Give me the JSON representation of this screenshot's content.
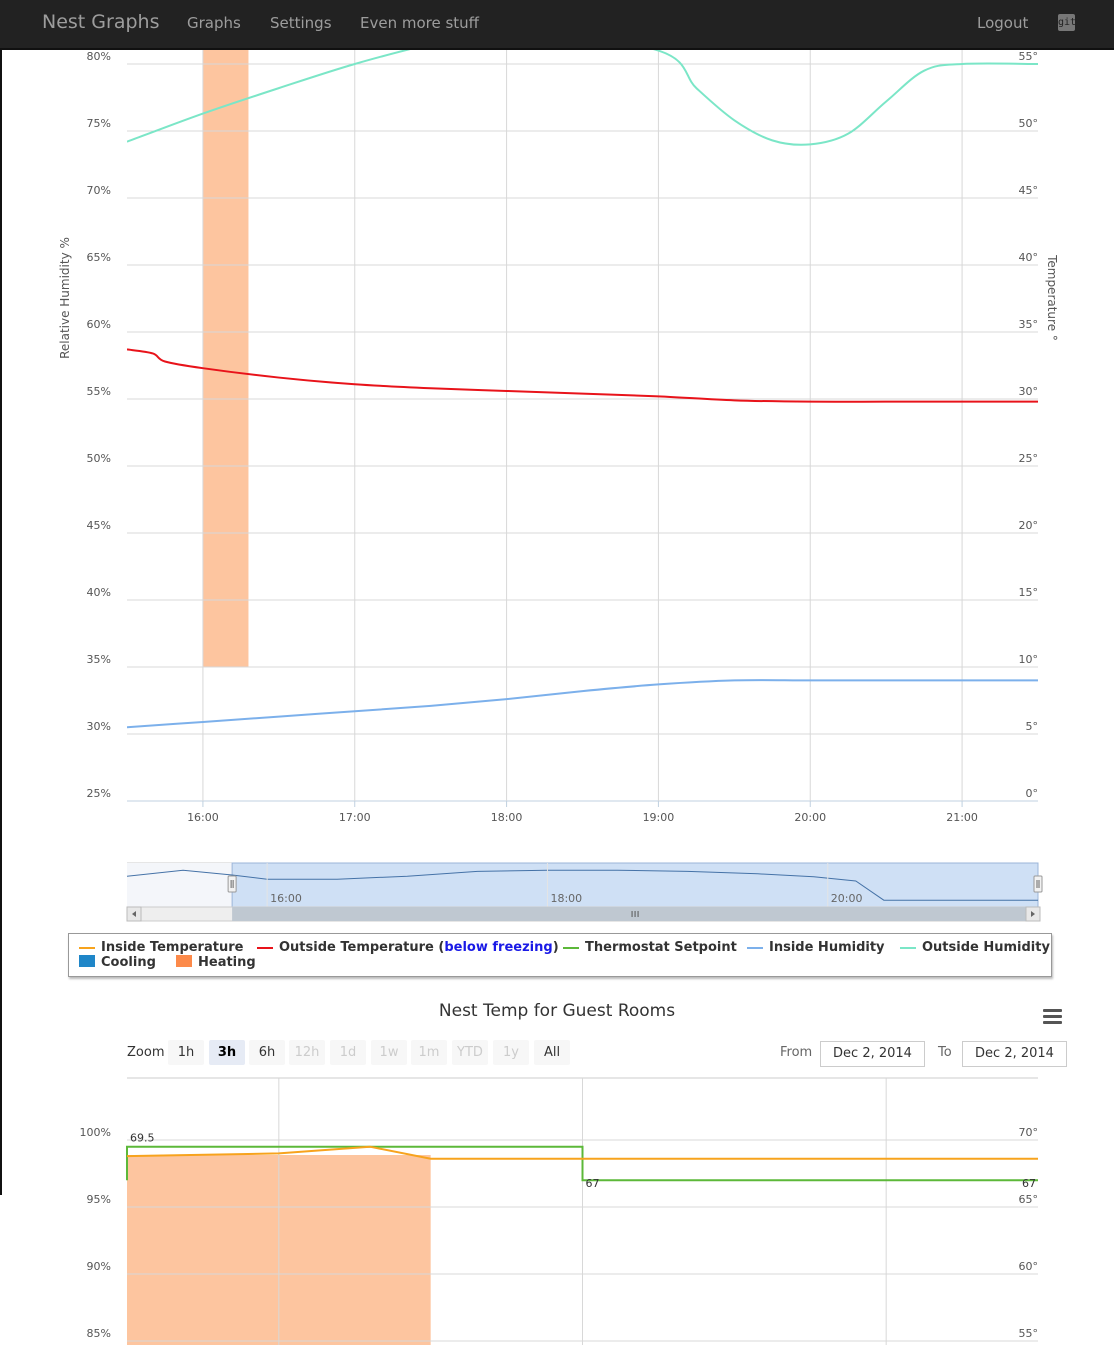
{
  "navbar": {
    "brand": "Nest Graphs",
    "links": [
      "Graphs",
      "Settings",
      "Even more stuff"
    ],
    "logout": "Logout",
    "git_icon": "git"
  },
  "colors": {
    "inside_temperature": "#f7a31d",
    "outside_temperature": "#e8131a",
    "thermostat_setpoint": "#5cb839",
    "inside_humidity": "#7cb0eb",
    "outside_humidity": "#7be6c7",
    "cooling": "#1f86c8",
    "heating": "#fdc59f"
  },
  "legend": {
    "items": [
      {
        "type": "line",
        "label": "Inside Temperature",
        "color_key": "inside_temperature"
      },
      {
        "type": "line",
        "label_pre": "Outside Temperature (",
        "label_link": "below freezing",
        "label_post": ")",
        "color_key": "outside_temperature"
      },
      {
        "type": "line",
        "label": "Thermostat Setpoint",
        "color_key": "thermostat_setpoint"
      },
      {
        "type": "line",
        "label": "Inside Humidity",
        "color_key": "inside_humidity"
      },
      {
        "type": "line",
        "label": "Outside Humidity",
        "color_key": "outside_humidity"
      },
      {
        "type": "box",
        "label": "Cooling",
        "color_key": "cooling"
      },
      {
        "type": "box",
        "label": "Heating",
        "color_key": "heating"
      }
    ]
  },
  "chart2_controls": {
    "title": "Nest Temp for Guest Rooms",
    "zoom_label": "Zoom",
    "zoom_buttons": [
      {
        "label": "1h",
        "state": "normal"
      },
      {
        "label": "3h",
        "state": "active"
      },
      {
        "label": "6h",
        "state": "normal"
      },
      {
        "label": "12h",
        "state": "disabled"
      },
      {
        "label": "1d",
        "state": "disabled"
      },
      {
        "label": "1w",
        "state": "disabled"
      },
      {
        "label": "1m",
        "state": "disabled"
      },
      {
        "label": "YTD",
        "state": "disabled"
      },
      {
        "label": "1y",
        "state": "disabled"
      },
      {
        "label": "All",
        "state": "normal"
      }
    ],
    "from_label": "From",
    "from_value": "Dec 2, 2014",
    "to_label": "To",
    "to_value": "Dec 2, 2014"
  },
  "chart_data": [
    {
      "type": "line",
      "title": "",
      "ylabel_left": "Relative Humidity %",
      "ylabel_right": "Temperature °",
      "x_ticks": [
        "16:00",
        "17:00",
        "18:00",
        "19:00",
        "20:00",
        "21:00"
      ],
      "x_range": [
        15.5,
        21.5
      ],
      "y_left_ticks": [
        "80%",
        "75%",
        "70%",
        "65%",
        "60%",
        "55%",
        "50%",
        "45%",
        "40%",
        "35%",
        "30%",
        "25%"
      ],
      "y_left_range": [
        25,
        80
      ],
      "y_right_ticks": [
        "55°",
        "50°",
        "45°",
        "40°",
        "35°",
        "30°",
        "25°",
        "20°",
        "15°",
        "10°",
        "5°",
        "0°"
      ],
      "y_right_range": [
        0,
        55
      ],
      "grid": true,
      "heating_bands": [
        {
          "from": 16.0,
          "to": 16.3,
          "y_top": 80,
          "y_bottom": 35
        }
      ],
      "series": [
        {
          "name": "Outside Temperature",
          "axis": "right",
          "color_key": "outside_temperature",
          "x": [
            15.5,
            15.67,
            15.75,
            16.0,
            16.5,
            17.0,
            17.5,
            18.0,
            18.5,
            19.0,
            19.5,
            20.0,
            20.5,
            21.0,
            21.5
          ],
          "y": [
            33.7,
            33.4,
            32.8,
            32.3,
            31.6,
            31.1,
            30.8,
            30.6,
            30.4,
            30.2,
            29.9,
            29.8,
            29.8,
            29.8,
            29.8
          ]
        },
        {
          "name": "Inside Humidity",
          "axis": "left",
          "color_key": "inside_humidity",
          "x": [
            15.5,
            16.0,
            16.5,
            17.0,
            17.5,
            18.0,
            18.5,
            19.0,
            19.5,
            20.0,
            20.5,
            21.0,
            21.5
          ],
          "y": [
            30.5,
            30.9,
            31.3,
            31.7,
            32.1,
            32.6,
            33.2,
            33.7,
            34.0,
            34.0,
            34.0,
            34.0,
            34.0
          ]
        },
        {
          "name": "Outside Humidity",
          "axis": "left",
          "color_key": "outside_humidity",
          "x": [
            15.5,
            16.0,
            16.5,
            17.0,
            17.5,
            18.0,
            19.0,
            19.25,
            19.5,
            19.75,
            20.0,
            20.25,
            20.5,
            20.75,
            21.0,
            21.5
          ],
          "y": [
            74.2,
            76.3,
            78.2,
            80.0,
            81.5,
            82.8,
            81.0,
            78.2,
            75.8,
            74.3,
            74.0,
            74.8,
            77.2,
            79.5,
            80.0,
            80.0
          ]
        }
      ]
    },
    {
      "type": "line",
      "title": "",
      "navigator_ticks": [
        "16:00",
        "18:00",
        "20:00"
      ],
      "x_range": [
        15.0,
        21.5
      ],
      "selected_range": [
        15.75,
        21.5
      ],
      "series": [
        {
          "name": "",
          "x": [
            15.0,
            15.4,
            15.75,
            16.0,
            16.5,
            17.0,
            17.5,
            18.0,
            18.5,
            19.0,
            19.5,
            19.9,
            20.2,
            20.4,
            21.0,
            21.5
          ],
          "y": [
            0.4,
            0.9,
            0.5,
            0.15,
            0.15,
            0.4,
            0.8,
            0.9,
            0.9,
            0.8,
            0.6,
            0.35,
            0.0,
            -1.6,
            -1.6,
            -1.6
          ]
        }
      ]
    },
    {
      "type": "line",
      "title": "Nest Temp for Guest Rooms",
      "y_left_ticks": [
        "100%",
        "95%",
        "90%",
        "85%"
      ],
      "y_left_range": [
        85,
        100
      ],
      "y_right_ticks": [
        "70°",
        "65°",
        "60°",
        "55°"
      ],
      "y_right_range": [
        55,
        70
      ],
      "grid": true,
      "x_range": [
        0,
        3
      ],
      "vertical_grid": [
        0.5,
        1.5,
        2.5
      ],
      "heating_bands": [
        {
          "from": 0,
          "to": 1.0
        }
      ],
      "data_labels": [
        {
          "text": "69.5",
          "x": 0.0,
          "y": 69.5
        },
        {
          "text": "67",
          "x": 1.5,
          "y": 67
        },
        {
          "text": "67",
          "x": 3.0,
          "y": 67
        }
      ],
      "series": [
        {
          "name": "Thermostat Setpoint",
          "axis": "right",
          "color_key": "thermostat_setpoint",
          "step": true,
          "x": [
            0.0,
            0.0,
            1.5,
            1.5,
            3.0
          ],
          "y": [
            67.0,
            69.5,
            69.5,
            67.0,
            67.0
          ]
        },
        {
          "name": "Inside Temperature",
          "axis": "right",
          "color_key": "inside_temperature",
          "x": [
            0.0,
            0.5,
            0.8,
            1.0,
            1.5,
            3.0
          ],
          "y": [
            68.8,
            69.0,
            69.5,
            68.6,
            68.6,
            68.6
          ]
        }
      ]
    }
  ]
}
